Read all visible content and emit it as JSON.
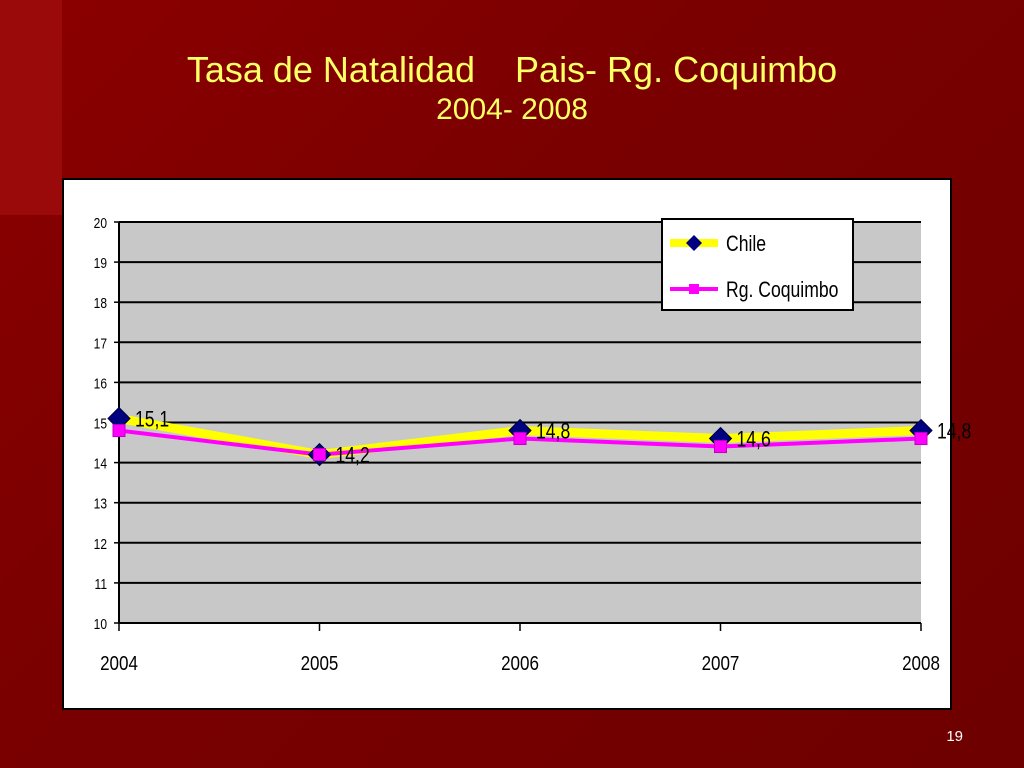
{
  "slide": {
    "title_line1": "Tasa de Natalidad    Pais- Rg. Coquimbo",
    "title_line2": "2004- 2008",
    "page_number": "19"
  },
  "colors": {
    "background": "#7a0000",
    "title": "#ffff66",
    "plot_area": "#c8c8c8",
    "chile_line": "#ffff00",
    "chile_marker": "#000080",
    "coquimbo_line": "#ff00ff",
    "coquimbo_marker": "#ff00ff"
  },
  "chart_data": {
    "type": "line",
    "categories": [
      "2004",
      "2005",
      "2006",
      "2007",
      "2008"
    ],
    "series": [
      {
        "name": "Chile",
        "values": [
          15.1,
          14.2,
          14.8,
          14.6,
          14.8
        ],
        "marker": "diamond"
      },
      {
        "name": "Rg. Coquimbo",
        "values": [
          14.8,
          14.2,
          14.6,
          14.4,
          14.6
        ],
        "marker": "square"
      }
    ],
    "data_labels": [
      "15,1",
      "14,2",
      "14,8",
      "14,6",
      "14,8"
    ],
    "ylim": [
      10,
      20
    ],
    "yticks": [
      "10",
      "11",
      "12",
      "13",
      "14",
      "15",
      "16",
      "17",
      "18",
      "19",
      "20"
    ],
    "grid": true,
    "legend_position": "top-right"
  }
}
